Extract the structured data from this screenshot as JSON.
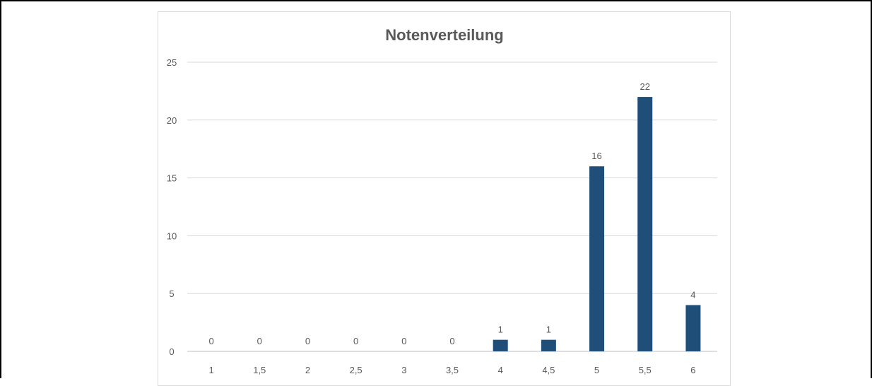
{
  "chart_data": {
    "type": "bar",
    "title": "Notenverteilung",
    "xlabel": "",
    "ylabel": "",
    "categories": [
      "1",
      "1,5",
      "2",
      "2,5",
      "3",
      "3,5",
      "4",
      "4,5",
      "5",
      "5,5",
      "6"
    ],
    "values": [
      0,
      0,
      0,
      0,
      0,
      0,
      1,
      1,
      16,
      22,
      4
    ],
    "data_labels": [
      "0",
      "0",
      "0",
      "0",
      "0",
      "0",
      "1",
      "1",
      "16",
      "22",
      "4"
    ],
    "ylim": [
      0,
      25
    ],
    "yticks": [
      0,
      5,
      10,
      15,
      20,
      25
    ],
    "ytick_labels": [
      "0",
      "5",
      "10",
      "15",
      "20",
      "25"
    ],
    "grid": true,
    "legend": "none",
    "colors": {
      "bar": "#1f4e79",
      "grid": "#d9d9d9",
      "axis": "#bfbfbf",
      "text": "#595959",
      "title": "#595959"
    }
  }
}
